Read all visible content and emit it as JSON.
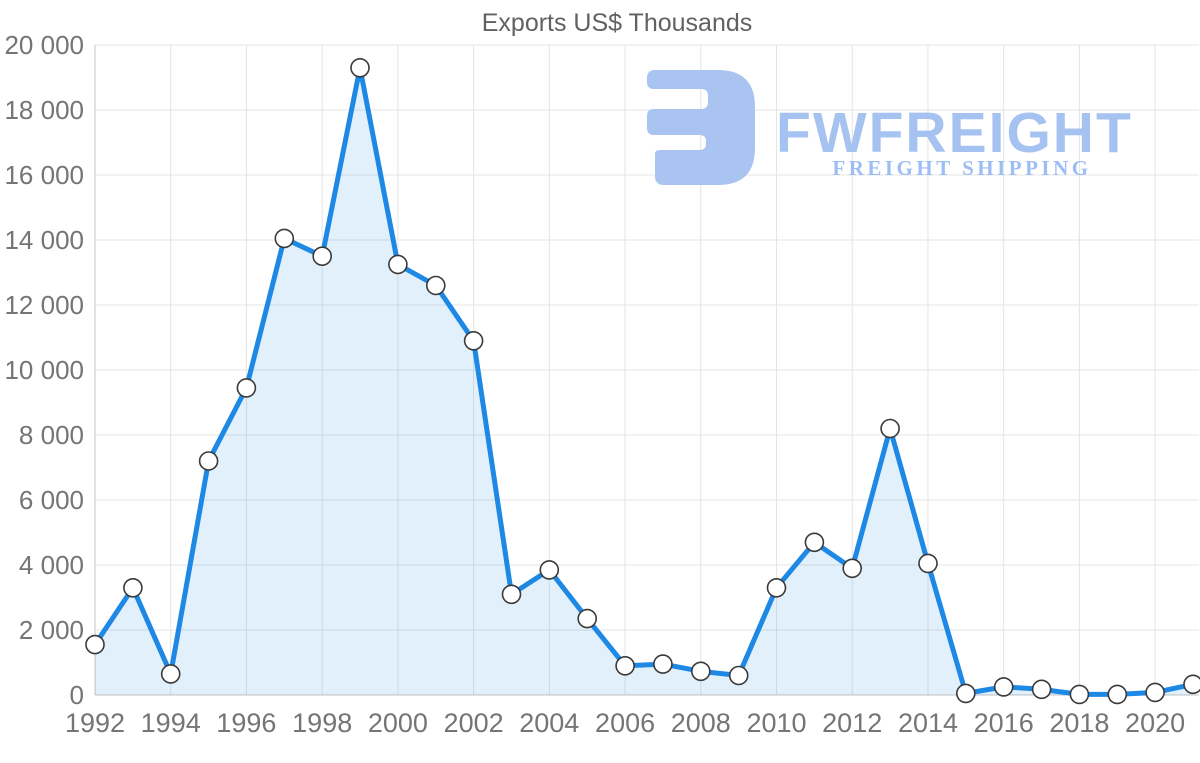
{
  "chart_data": {
    "type": "area",
    "title": "Exports US$ Thousands",
    "x": [
      1992,
      1993,
      1994,
      1995,
      1996,
      1997,
      1998,
      1999,
      2000,
      2001,
      2002,
      2003,
      2004,
      2005,
      2006,
      2007,
      2008,
      2009,
      2010,
      2011,
      2012,
      2013,
      2014,
      2015,
      2016,
      2017,
      2018,
      2019,
      2020,
      2021
    ],
    "values": [
      1550,
      3300,
      650,
      7200,
      9450,
      14050,
      13500,
      19300,
      13250,
      12600,
      10900,
      3100,
      3850,
      2350,
      900,
      950,
      730,
      600,
      3300,
      4700,
      3900,
      8200,
      4050,
      50,
      250,
      175,
      20,
      20,
      80,
      330
    ],
    "xlabel": "",
    "ylabel": "",
    "ylim": [
      0,
      20000
    ],
    "y_ticks": [
      0,
      2000,
      4000,
      6000,
      8000,
      10000,
      12000,
      14000,
      16000,
      18000,
      20000
    ],
    "y_tick_labels": [
      "0",
      "2 000",
      "4 000",
      "6 000",
      "8 000",
      "10 000",
      "12 000",
      "14 000",
      "16 000",
      "18 000",
      "20 000"
    ],
    "x_ticks": [
      1992,
      1994,
      1996,
      1998,
      2000,
      2002,
      2004,
      2006,
      2008,
      2010,
      2012,
      2014,
      2016,
      2018,
      2020
    ],
    "x_tick_labels": [
      "1992",
      "1994",
      "1996",
      "1998",
      "2000",
      "2002",
      "2004",
      "2006",
      "2008",
      "2010",
      "2012",
      "2014",
      "2016",
      "2018",
      "2020"
    ],
    "grid": true,
    "legend": "none",
    "line_color": "#1e88e5",
    "line_width": 5,
    "fill_color": "rgba(30,136,229,0.13)",
    "marker": {
      "radius": 9,
      "fill": "#ffffff",
      "stroke": "#3a3a3a",
      "stroke_width": 1.6
    },
    "grid_color": "#e4e4e4",
    "axis_color": "#cfcfcf",
    "tick_text_color": "#757575",
    "title_color": "#616161"
  },
  "watermark": {
    "brand": "FWFREIGHT",
    "tagline": "FREIGHT SHIPPING",
    "brand_color": "#a6c2f1",
    "icon_color": "#a9c4f1",
    "tagline_color": "#9cbdf6"
  }
}
